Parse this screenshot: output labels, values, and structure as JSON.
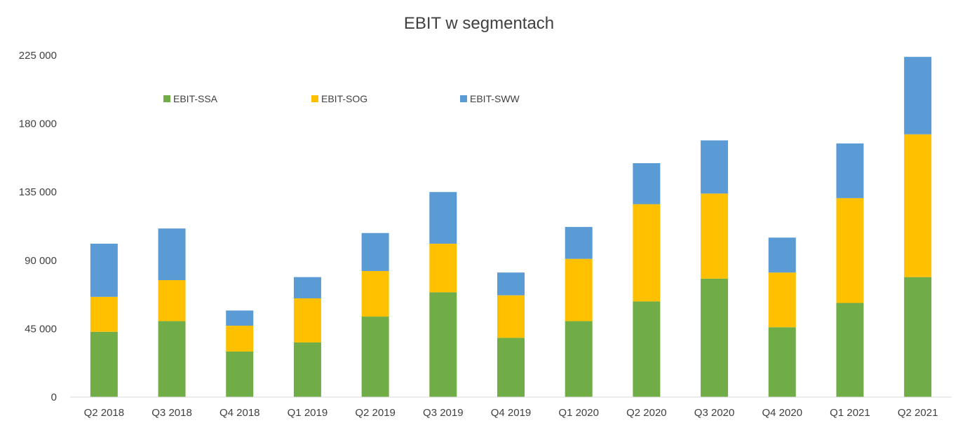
{
  "chart_data": {
    "type": "bar",
    "stacked": true,
    "title": "EBIT w segmentach",
    "xlabel": "",
    "ylabel": "",
    "ylim": [
      0,
      225000
    ],
    "yticks": [
      0,
      45000,
      90000,
      135000,
      180000,
      225000
    ],
    "ytick_labels": [
      "0",
      "45 000",
      "90 000",
      "135 000",
      "180 000",
      "225 000"
    ],
    "grid": false,
    "legend_position": "top-left",
    "categories": [
      "Q2 2018",
      "Q3 2018",
      "Q4 2018",
      "Q1 2019",
      "Q2 2019",
      "Q3 2019",
      "Q4 2019",
      "Q1 2020",
      "Q2 2020",
      "Q3 2020",
      "Q4 2020",
      "Q1 2021",
      "Q2 2021"
    ],
    "series": [
      {
        "name": "EBIT-SSA",
        "color": "#70ad47",
        "values": [
          43000,
          50000,
          30000,
          36000,
          53000,
          69000,
          39000,
          50000,
          63000,
          78000,
          46000,
          62000,
          79000
        ]
      },
      {
        "name": "EBIT-SOG",
        "color": "#ffc000",
        "values": [
          23000,
          27000,
          17000,
          29000,
          30000,
          32000,
          28000,
          41000,
          64000,
          56000,
          36000,
          69000,
          94000
        ]
      },
      {
        "name": "EBIT-SWW",
        "color": "#5b9bd5",
        "values": [
          35000,
          34000,
          10000,
          14000,
          25000,
          34000,
          15000,
          21000,
          27000,
          35000,
          23000,
          36000,
          51000
        ]
      }
    ]
  }
}
